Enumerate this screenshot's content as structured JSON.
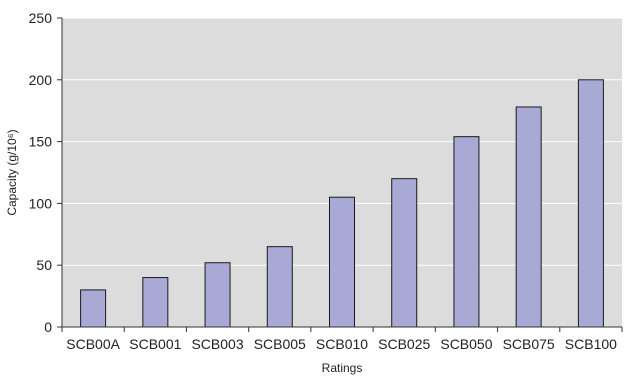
{
  "chart_data": {
    "type": "bar",
    "title": "",
    "xlabel": "Ratings",
    "ylabel": "Capacity (g/10⁶)",
    "categories": [
      "SCB00A",
      "SCB001",
      "SCB003",
      "SCB005",
      "SCB010",
      "SCB025",
      "SCB050",
      "SCB075",
      "SCB100"
    ],
    "values": [
      30,
      40,
      52,
      65,
      105,
      120,
      154,
      178,
      200
    ],
    "ylim": [
      0,
      250
    ],
    "yticks": [
      0,
      50,
      100,
      150,
      200,
      250
    ],
    "grid": true,
    "legend": "none",
    "colors": {
      "plot_background": "#dcdcdc",
      "bar_fill": "#a9a9d6",
      "bar_stroke": "#1a1a1a",
      "gridline": "#ffffff",
      "axis": "#333333"
    }
  }
}
